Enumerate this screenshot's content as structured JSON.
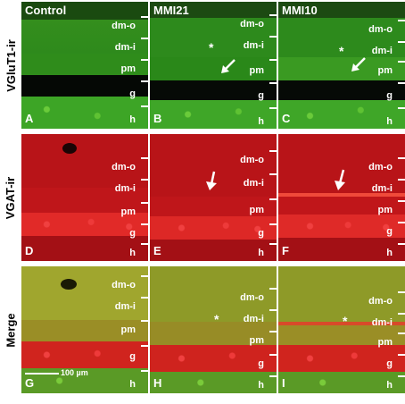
{
  "row_labels": [
    "VGluT1-ir",
    "VGAT-ir",
    "Merge"
  ],
  "column_titles": [
    "Control",
    "MMI21",
    "MMI10"
  ],
  "layer_labels": [
    "dm-o",
    "dm-i",
    "pm",
    "g",
    "h"
  ],
  "panel_letters": [
    "A",
    "B",
    "C",
    "D",
    "E",
    "F",
    "G",
    "H",
    "I"
  ],
  "scale_bar_label": "100 µm",
  "asterisk": "*",
  "colors": {
    "vglut_green": "#2f9a1e",
    "vgat_red": "#c8161a",
    "merge_yellow": "#a9a72a",
    "label_white": "#ffffff"
  }
}
